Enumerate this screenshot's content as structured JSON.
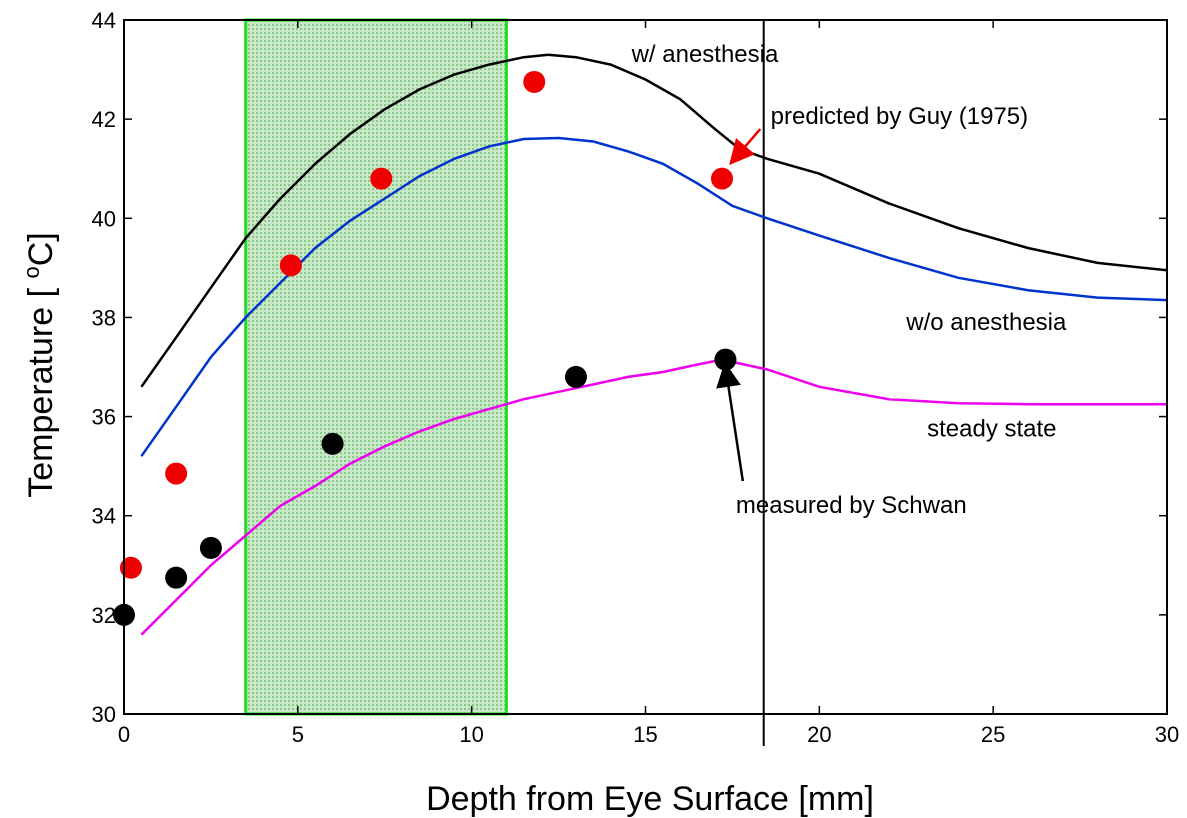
{
  "chart_data": {
    "type": "line",
    "xlabel": "Depth from Eye Surface  [mm]",
    "ylabel_text": "Temperature [ ",
    "ylabel_sup": "o",
    "ylabel_unit": "C]",
    "xlim": [
      0,
      30
    ],
    "ylim": [
      30,
      44
    ],
    "xticks": [
      0,
      5,
      10,
      15,
      20,
      25,
      30
    ],
    "yticks": [
      30,
      32,
      34,
      36,
      38,
      40,
      42,
      44
    ],
    "grid": false,
    "shaded_region": {
      "x": [
        3.5,
        11.0
      ],
      "fill": "#90d090",
      "border": "#22dd22"
    },
    "vertical_line_x": 18.4,
    "series": [
      {
        "name": "w/ anesthesia",
        "color": "#000000",
        "points": [
          [
            0.5,
            36.6
          ],
          [
            1.5,
            37.6
          ],
          [
            2.5,
            38.6
          ],
          [
            3.5,
            39.6
          ],
          [
            4.5,
            40.4
          ],
          [
            5.5,
            41.1
          ],
          [
            6.5,
            41.7
          ],
          [
            7.5,
            42.2
          ],
          [
            8.5,
            42.6
          ],
          [
            9.5,
            42.9
          ],
          [
            10.5,
            43.1
          ],
          [
            11.5,
            43.25
          ],
          [
            12.2,
            43.3
          ],
          [
            13,
            43.25
          ],
          [
            14,
            43.1
          ],
          [
            15,
            42.8
          ],
          [
            16,
            42.4
          ],
          [
            17,
            41.8
          ],
          [
            17.7,
            41.4
          ],
          [
            18.5,
            41.2
          ],
          [
            20,
            40.9
          ],
          [
            22,
            40.3
          ],
          [
            24,
            39.8
          ],
          [
            26,
            39.4
          ],
          [
            28,
            39.1
          ],
          [
            30,
            38.95
          ]
        ]
      },
      {
        "name": "w/o anesthesia",
        "color": "#0033cc",
        "points": [
          [
            0.5,
            35.2
          ],
          [
            1.5,
            36.2
          ],
          [
            2.5,
            37.2
          ],
          [
            3.5,
            38.0
          ],
          [
            4.5,
            38.7
          ],
          [
            5.5,
            39.4
          ],
          [
            6.5,
            39.95
          ],
          [
            7.5,
            40.4
          ],
          [
            8.5,
            40.85
          ],
          [
            9.5,
            41.2
          ],
          [
            10.5,
            41.45
          ],
          [
            11.5,
            41.6
          ],
          [
            12.5,
            41.62
          ],
          [
            13.5,
            41.55
          ],
          [
            14.5,
            41.35
          ],
          [
            15.5,
            41.1
          ],
          [
            16.5,
            40.7
          ],
          [
            17.5,
            40.25
          ],
          [
            18.5,
            40.0
          ],
          [
            20,
            39.65
          ],
          [
            22,
            39.2
          ],
          [
            24,
            38.8
          ],
          [
            26,
            38.55
          ],
          [
            28,
            38.4
          ],
          [
            30,
            38.35
          ]
        ]
      },
      {
        "name": "steady state",
        "color": "#ee00ee",
        "points": [
          [
            0.5,
            31.6
          ],
          [
            1.5,
            32.3
          ],
          [
            2.5,
            33.0
          ],
          [
            3.5,
            33.6
          ],
          [
            4.5,
            34.2
          ],
          [
            5.5,
            34.6
          ],
          [
            6.5,
            35.05
          ],
          [
            7.5,
            35.4
          ],
          [
            8.5,
            35.7
          ],
          [
            9.5,
            35.95
          ],
          [
            10.5,
            36.15
          ],
          [
            11.5,
            36.35
          ],
          [
            12.5,
            36.5
          ],
          [
            13.5,
            36.65
          ],
          [
            14.5,
            36.8
          ],
          [
            15.5,
            36.9
          ],
          [
            16.5,
            37.05
          ],
          [
            17.2,
            37.15
          ],
          [
            18.5,
            36.95
          ],
          [
            20,
            36.6
          ],
          [
            22,
            36.35
          ],
          [
            24,
            36.27
          ],
          [
            26,
            36.25
          ],
          [
            28,
            36.25
          ],
          [
            30,
            36.25
          ]
        ]
      }
    ],
    "markers": [
      {
        "name": "predicted by Guy (1975)",
        "color": "#ee0000",
        "points": [
          [
            0.2,
            32.95
          ],
          [
            1.5,
            34.85
          ],
          [
            4.8,
            39.05
          ],
          [
            7.4,
            40.8
          ],
          [
            11.8,
            42.75
          ],
          [
            17.2,
            40.8
          ]
        ]
      },
      {
        "name": "measured by Schwan",
        "color": "#000000",
        "points": [
          [
            0,
            32.0
          ],
          [
            1.5,
            32.75
          ],
          [
            2.5,
            33.35
          ],
          [
            6.0,
            35.45
          ],
          [
            13.0,
            36.8
          ],
          [
            17.3,
            37.15
          ]
        ]
      }
    ],
    "annotations": [
      {
        "id": "w-anesthesia",
        "text": "w/ anesthesia",
        "x": 14.6,
        "y": 43.15,
        "color": "#000000"
      },
      {
        "id": "predicted-guy",
        "text": "predicted by Guy (1975)",
        "x": 18.6,
        "y": 41.9,
        "color": "#ee0000"
      },
      {
        "id": "wo-anesthesia",
        "text": "w/o anesthesia",
        "x": 22.5,
        "y": 37.75,
        "color": "#000000"
      },
      {
        "id": "steady-state",
        "text": "steady state",
        "x": 23.1,
        "y": 35.6,
        "color": "#000000"
      },
      {
        "id": "measured-schwan",
        "text": "measured by Schwan",
        "x": 17.6,
        "y": 34.05,
        "color": "#000000"
      }
    ],
    "arrows": [
      {
        "id": "arrow-guy",
        "color": "#ee0000",
        "from": [
          18.3,
          41.8
        ],
        "to": [
          17.5,
          41.15
        ]
      },
      {
        "id": "arrow-schwan",
        "color": "#000000",
        "from": [
          17.8,
          34.7
        ],
        "to": [
          17.3,
          37.0
        ]
      }
    ]
  }
}
